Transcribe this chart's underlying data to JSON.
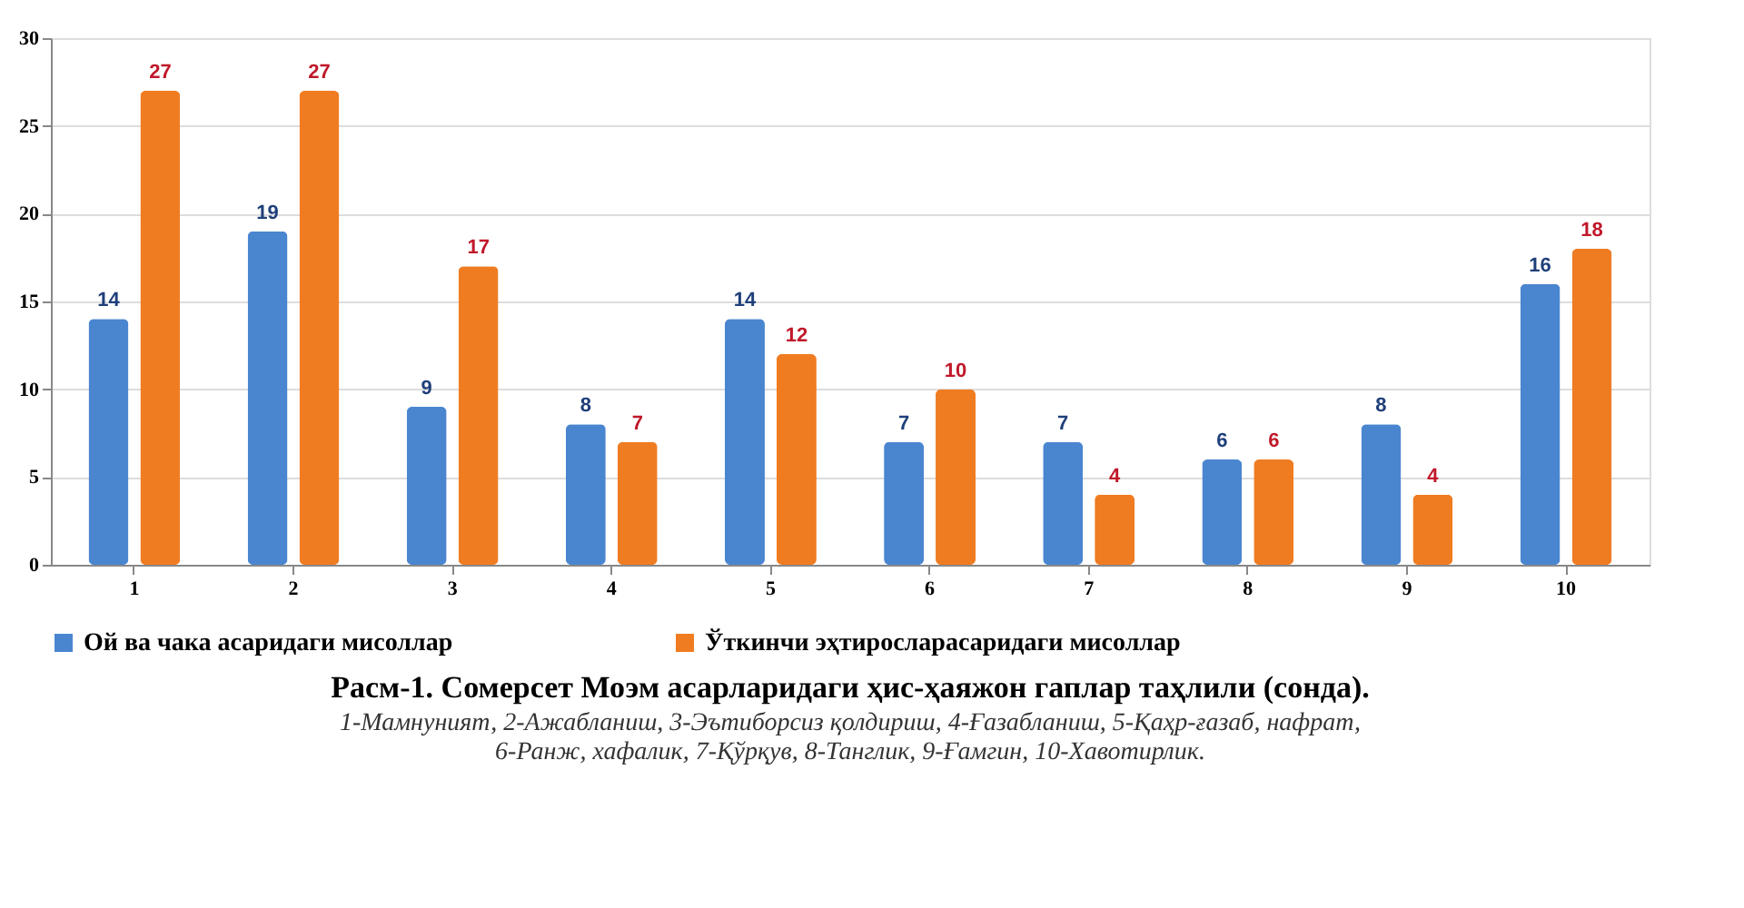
{
  "chart_data": {
    "type": "bar",
    "title": "Расм-1. Сомерсет Моэм асарларидаги ҳис-ҳаяжон гаплар таҳлили (сонда).",
    "annotations": [
      "1-Мамнуният, 2-Ажабланиш, 3-Эътиборсиз қолдириш,  4-Ғазабланиш,  5-Қаҳр-ғазаб, нафрат,",
      "6-Ранж, хафалик, 7-Қўрқув, 8-Танглик, 9-Ғамгин, 10-Хавотирлик."
    ],
    "categories": [
      "1",
      "2",
      "3",
      "4",
      "5",
      "6",
      "7",
      "8",
      "9",
      "10"
    ],
    "series": [
      {
        "name": "Ой ва чака асаридаги мисоллар",
        "color": "#4a86d0",
        "values": [
          14,
          19,
          9,
          8,
          14,
          7,
          7,
          6,
          8,
          16
        ]
      },
      {
        "name": "Ўткинчи эҳтиросларасаридаги мисоллар",
        "color": "#f07c22",
        "values": [
          27,
          27,
          17,
          7,
          12,
          10,
          4,
          6,
          4,
          18
        ]
      }
    ],
    "ylim": [
      0,
      30
    ],
    "yticks": [
      0,
      5,
      10,
      15,
      20,
      25,
      30
    ],
    "grid": "y",
    "legend": "bottom",
    "data_labels": true
  }
}
